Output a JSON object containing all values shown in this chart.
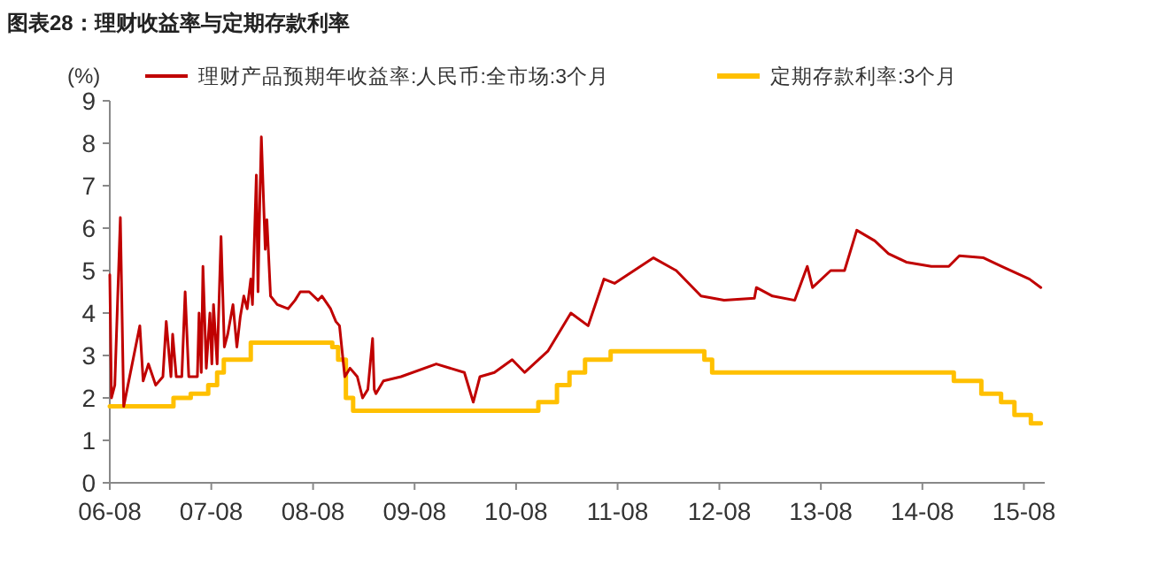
{
  "chart_data": {
    "type": "line",
    "title": "图表28：理财收益率与定期存款利率",
    "ylabel": "(%)",
    "xlim": [
      "2006-08-01",
      "2015-10-15"
    ],
    "ylim": [
      0,
      9
    ],
    "yticks": [
      0,
      1,
      2,
      3,
      4,
      5,
      6,
      7,
      8,
      9
    ],
    "xticks": [
      {
        "value": "2006-08-01",
        "label": "06-08"
      },
      {
        "value": "2007-08-01",
        "label": "07-08"
      },
      {
        "value": "2008-08-01",
        "label": "08-08"
      },
      {
        "value": "2009-08-01",
        "label": "09-08"
      },
      {
        "value": "2010-08-01",
        "label": "10-08"
      },
      {
        "value": "2011-08-01",
        "label": "11-08"
      },
      {
        "value": "2012-08-01",
        "label": "12-08"
      },
      {
        "value": "2013-08-01",
        "label": "13-08"
      },
      {
        "value": "2014-08-01",
        "label": "14-08"
      },
      {
        "value": "2015-08-01",
        "label": "15-08"
      }
    ],
    "grid": false,
    "legend": "top",
    "marker": "none",
    "line_style": "solid",
    "series": [
      {
        "name": "理财产品预期年收益率:人民币:全市场:3个月",
        "color": "#c00000",
        "type": "line",
        "x": [
          "2006-08-01",
          "2006-08-07",
          "2006-08-19",
          "2006-09-08",
          "2006-09-20",
          "2006-11-17",
          "2006-11-29",
          "2006-12-18",
          "2007-01-13",
          "2007-02-08",
          "2007-02-20",
          "2007-03-09",
          "2007-03-15",
          "2007-03-28",
          "2007-04-17",
          "2007-04-29",
          "2007-05-12",
          "2007-06-12",
          "2007-06-18",
          "2007-06-26",
          "2007-07-02",
          "2007-07-14",
          "2007-07-27",
          "2007-08-03",
          "2007-08-09",
          "2007-08-22",
          "2007-09-05",
          "2007-09-17",
          "2007-09-29",
          "2007-10-18",
          "2007-11-01",
          "2007-11-13",
          "2007-11-26",
          "2007-12-08",
          "2007-12-21",
          "2007-12-27",
          "2008-01-10",
          "2008-01-16",
          "2008-01-22",
          "2008-01-28",
          "2008-02-11",
          "2008-02-17",
          "2008-03-01",
          "2008-03-25",
          "2008-05-03",
          "2008-05-28",
          "2008-06-16",
          "2008-07-18",
          "2008-08-19",
          "2008-09-02",
          "2008-10-03",
          "2008-10-22",
          "2008-11-04",
          "2008-11-23",
          "2008-12-12",
          "2009-01-07",
          "2009-01-26",
          "2009-02-14",
          "2009-03-03",
          "2009-03-09",
          "2009-03-15",
          "2009-04-11",
          "2009-06-13",
          "2009-10-18",
          "2010-01-27",
          "2010-02-28",
          "2010-03-24",
          "2010-05-15",
          "2010-07-18",
          "2010-09-01",
          "2010-11-23",
          "2011-02-14",
          "2011-04-17",
          "2011-06-13",
          "2011-07-21",
          "2011-12-08",
          "2012-02-28",
          "2012-05-27",
          "2012-08-18",
          "2012-12-05",
          "2012-12-12",
          "2013-02-08",
          "2013-04-29",
          "2013-06-13",
          "2013-07-02",
          "2013-09-05",
          "2013-10-25",
          "2013-12-08",
          "2014-02-11",
          "2014-04-01",
          "2014-06-04",
          "2014-09-02",
          "2014-11-04",
          "2014-12-12",
          "2015-03-09",
          "2015-05-12",
          "2015-08-21",
          "2015-10-01"
        ],
        "values": [
          4.9,
          2.0,
          2.3,
          6.25,
          1.8,
          3.7,
          2.4,
          2.8,
          2.3,
          2.5,
          3.8,
          2.5,
          3.5,
          2.5,
          2.5,
          4.5,
          2.5,
          2.5,
          4.0,
          2.6,
          5.1,
          2.7,
          4.0,
          2.8,
          4.2,
          2.8,
          5.8,
          3.2,
          3.5,
          4.2,
          3.2,
          3.9,
          4.4,
          4.1,
          4.8,
          4.2,
          7.25,
          4.5,
          6.5,
          8.15,
          5.5,
          6.2,
          4.4,
          4.2,
          4.1,
          4.3,
          4.5,
          4.5,
          4.3,
          4.4,
          4.1,
          3.8,
          3.7,
          2.5,
          2.7,
          2.5,
          2.0,
          2.2,
          3.4,
          2.2,
          2.1,
          2.4,
          2.5,
          2.8,
          2.6,
          1.9,
          2.5,
          2.6,
          2.9,
          2.6,
          3.1,
          4.0,
          3.7,
          4.8,
          4.7,
          5.3,
          5.0,
          4.4,
          4.3,
          4.35,
          4.6,
          4.4,
          4.3,
          5.1,
          4.6,
          5.0,
          5.0,
          5.95,
          5.7,
          5.4,
          5.2,
          5.1,
          5.1,
          5.35,
          5.3,
          5.1,
          4.8,
          4.6
        ]
      },
      {
        "name": "定期存款利率:3个月",
        "color": "#ffc000",
        "type": "step",
        "x": [
          "2006-08-01",
          "2007-03-18",
          "2007-05-19",
          "2007-07-21",
          "2007-08-22",
          "2007-09-15",
          "2007-12-21",
          "2008-10-09",
          "2008-10-30",
          "2008-11-27",
          "2008-12-23",
          "2010-10-20",
          "2010-12-26",
          "2011-02-09",
          "2011-04-06",
          "2011-07-07",
          "2012-06-08",
          "2012-07-06",
          "2014-11-22",
          "2015-03-01",
          "2015-05-11",
          "2015-06-28",
          "2015-08-26",
          "2015-10-01"
        ],
        "values": [
          1.8,
          2.0,
          2.1,
          2.3,
          2.6,
          2.9,
          3.3,
          3.2,
          2.9,
          2.0,
          1.7,
          1.9,
          2.3,
          2.6,
          2.9,
          3.1,
          2.9,
          2.6,
          2.4,
          2.1,
          1.9,
          1.6,
          1.4,
          1.4
        ]
      }
    ]
  }
}
